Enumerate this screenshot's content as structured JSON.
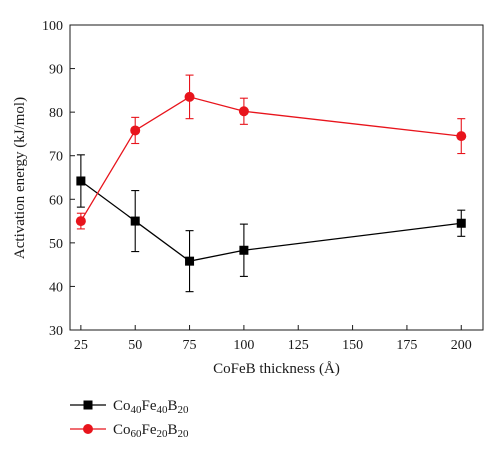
{
  "chart_data": {
    "type": "line",
    "xlabel": "CoFeB thickness (Å)",
    "ylabel": "Activation energy (kJ/mol)",
    "xlim": [
      20,
      210
    ],
    "ylim": [
      30,
      100
    ],
    "x_ticks": [
      25,
      50,
      75,
      100,
      125,
      150,
      175,
      200
    ],
    "y_ticks": [
      30,
      40,
      50,
      60,
      70,
      80,
      90,
      100
    ],
    "grid": false,
    "legend_position": "below",
    "series": [
      {
        "name": "Co40Fe40B20",
        "label_parts": [
          [
            "Co",
            ""
          ],
          [
            "40",
            "sub"
          ],
          [
            "Fe",
            ""
          ],
          [
            "40",
            "sub"
          ],
          [
            "B",
            ""
          ],
          [
            "20",
            "sub"
          ]
        ],
        "color": "#000000",
        "marker": "square",
        "x": [
          25,
          50,
          75,
          100,
          200
        ],
        "y": [
          64.2,
          55.0,
          45.8,
          48.3,
          54.5
        ],
        "err": [
          6.0,
          7.0,
          7.0,
          6.0,
          3.0
        ]
      },
      {
        "name": "Co60Fe20B20",
        "label_parts": [
          [
            "Co",
            ""
          ],
          [
            "60",
            "sub"
          ],
          [
            "Fe",
            ""
          ],
          [
            "20",
            "sub"
          ],
          [
            "B",
            ""
          ],
          [
            "20",
            "sub"
          ]
        ],
        "color": "#e8141c",
        "marker": "circle",
        "x": [
          25,
          50,
          75,
          100,
          200
        ],
        "y": [
          55.0,
          75.8,
          83.5,
          80.2,
          74.5
        ],
        "err": [
          1.8,
          3.0,
          5.0,
          3.0,
          4.0
        ]
      }
    ]
  }
}
